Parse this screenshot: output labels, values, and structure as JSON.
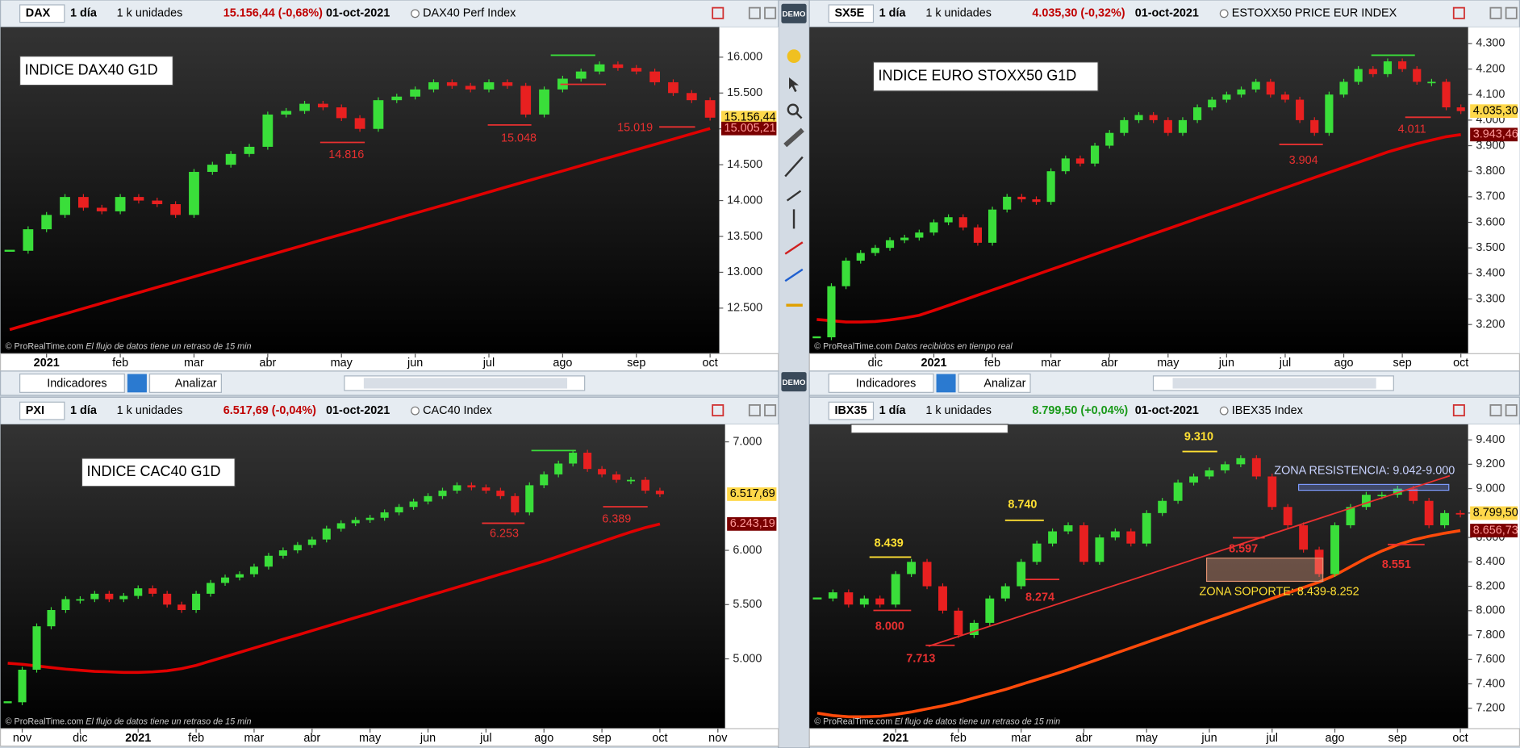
{
  "sidebar": {
    "demo": "DEMO"
  },
  "toolbar_common": {
    "indicators": "Indicadores",
    "analyze": "Analizar"
  },
  "panels": [
    {
      "toolbar": {
        "symbol": "DAX",
        "period": "1 día",
        "units": "1 k unidades",
        "price": "15.156,44 (-0,68%)",
        "price_color": "#c00000",
        "date": "01-oct-2021",
        "instrument": "DAX40 Perf Index"
      },
      "footer": {
        "source": "© ProRealTime.com",
        "note": "El flujo de datos tiene un retraso de 15 min"
      },
      "chart_data": {
        "type": "candlestick",
        "label": "INDICE DAX40 G1D",
        "annotations": [
          "14.816",
          "15.048",
          "15.019"
        ],
        "categories": [
          null,
          null,
          "2021",
          null,
          null,
          null,
          "feb",
          null,
          null,
          null,
          "mar",
          null,
          null,
          null,
          "abr",
          null,
          null,
          null,
          "may",
          null,
          null,
          null,
          "jun",
          null,
          null,
          null,
          "jul",
          null,
          null,
          null,
          "ago",
          null,
          null,
          null,
          "sep",
          null,
          null,
          null,
          "oct"
        ],
        "values": [
          13300,
          13600,
          13800,
          14050,
          13900,
          13850,
          14050,
          14000,
          13950,
          13800,
          14400,
          14500,
          14650,
          14750,
          15200,
          15250,
          15350,
          15300,
          15150,
          15000,
          15400,
          15450,
          15550,
          15650,
          15600,
          15550,
          15650,
          15600,
          15200,
          15550,
          15700,
          15800,
          15900,
          15850,
          15800,
          15650,
          15500,
          15400,
          15156.44
        ],
        "up_color": "#3ade3a",
        "down_color": "#e82020",
        "moving_average": {
          "color": "#e00000",
          "values": [
            12200,
            12274,
            12348,
            12421,
            12495,
            12569,
            12643,
            12717,
            12790,
            12864,
            12938,
            13012,
            13086,
            13159,
            13233,
            13307,
            13381,
            13455,
            13528,
            13602,
            13676,
            13750,
            13824,
            13897,
            13971,
            14045,
            14119,
            14193,
            14266,
            14340,
            14414,
            14488,
            14562,
            14635,
            14709,
            14783,
            14857,
            14931,
            15005.21
          ]
        },
        "last_label": "15.156,44",
        "ma_label": "15.005,21",
        "ylim": [
          11865,
          16419
        ],
        "yticks": [
          {
            "value": 12500,
            "label": "12.500"
          },
          {
            "value": 13000,
            "label": "13.000"
          },
          {
            "value": 13500,
            "label": "13.500"
          },
          {
            "value": 14000,
            "label": "14.000"
          },
          {
            "value": 14500,
            "label": "14.500"
          },
          {
            "value": 15000,
            "label": "15.000"
          },
          {
            "value": 15500,
            "label": "15.500"
          },
          {
            "value": 16000,
            "label": "16.000"
          }
        ]
      }
    },
    {
      "toolbar": {
        "symbol": "SX5E",
        "period": "1 día",
        "units": "1 k unidades",
        "price": "4.035,30 (-0,32%)",
        "price_color": "#c00000",
        "date": "01-oct-2021",
        "instrument": "ESTOXX50 PRICE EUR INDEX"
      },
      "footer": {
        "source": "© ProRealTime.com",
        "note": "Datos recibidos en tiempo real"
      },
      "chart_data": {
        "type": "candlestick",
        "label": "INDICE EURO STOXX50 G1D",
        "annotations": [
          "3.904",
          "4.011"
        ],
        "categories": [
          null,
          null,
          null,
          null,
          "dic",
          null,
          null,
          null,
          "2021",
          null,
          null,
          null,
          "feb",
          null,
          null,
          null,
          "mar",
          null,
          null,
          null,
          "abr",
          null,
          null,
          null,
          "may",
          null,
          null,
          null,
          "jun",
          null,
          null,
          null,
          "jul",
          null,
          null,
          null,
          "ago",
          null,
          null,
          null,
          "sep",
          null,
          null,
          null,
          "oct"
        ],
        "values": [
          3150,
          3350,
          3450,
          3480,
          3500,
          3530,
          3540,
          3560,
          3600,
          3620,
          3580,
          3520,
          3650,
          3700,
          3690,
          3680,
          3800,
          3850,
          3830,
          3900,
          3950,
          4000,
          4020,
          4000,
          3950,
          4000,
          4050,
          4080,
          4100,
          4120,
          4150,
          4100,
          4080,
          4000,
          3950,
          4100,
          4150,
          4200,
          4180,
          4230,
          4200,
          4150,
          4150,
          4050,
          4035.3
        ],
        "up_color": "#3ade3a",
        "down_color": "#e82020",
        "moving_average": {
          "color": "#e00000",
          "values": [
            3220,
            3215,
            3210,
            3210,
            3212,
            3218,
            3226,
            3236,
            3255,
            3275,
            3295,
            3315,
            3335,
            3355,
            3375,
            3395,
            3415,
            3435,
            3455,
            3475,
            3495,
            3515,
            3535,
            3555,
            3575,
            3595,
            3615,
            3635,
            3655,
            3675,
            3695,
            3715,
            3735,
            3755,
            3775,
            3795,
            3815,
            3835,
            3855,
            3875,
            3892,
            3908,
            3922,
            3935,
            3943.46
          ]
        },
        "last_label": "4.035,30",
        "ma_label": "3.943,46",
        "ylim": [
          3086,
          4364
        ],
        "yticks": [
          {
            "value": 3200,
            "label": "3.200"
          },
          {
            "value": 3300,
            "label": "3.300"
          },
          {
            "value": 3400,
            "label": "3.400"
          },
          {
            "value": 3500,
            "label": "3.500"
          },
          {
            "value": 3600,
            "label": "3.600"
          },
          {
            "value": 3700,
            "label": "3.700"
          },
          {
            "value": 3800,
            "label": "3.800"
          },
          {
            "value": 3900,
            "label": "3.900"
          },
          {
            "value": 4000,
            "label": "4.000"
          },
          {
            "value": 4100,
            "label": "4.100"
          },
          {
            "value": 4200,
            "label": "4.200"
          },
          {
            "value": 4300,
            "label": "4.300"
          }
        ]
      }
    },
    {
      "toolbar": {
        "symbol": "PXI",
        "period": "1 día",
        "units": "1 k unidades",
        "price": "6.517,69 (-0,04%)",
        "price_color": "#c00000",
        "date": "01-oct-2021",
        "instrument": "CAC40 Index"
      },
      "footer": {
        "source": "© ProRealTime.com",
        "note": "El flujo de datos tiene un retraso de 15 min"
      },
      "chart_data": {
        "type": "candlestick",
        "label": "INDICE CAC40 G1D",
        "annotations": [
          "6.253",
          "6.389"
        ],
        "categories": [
          null,
          "nov",
          null,
          null,
          null,
          "dic",
          null,
          null,
          null,
          "2021",
          null,
          null,
          null,
          "feb",
          null,
          null,
          null,
          "mar",
          null,
          null,
          null,
          "abr",
          null,
          null,
          null,
          "may",
          null,
          null,
          null,
          "jun",
          null,
          null,
          null,
          "jul",
          null,
          null,
          null,
          "ago",
          null,
          null,
          null,
          "sep",
          null,
          null,
          null,
          "oct",
          null,
          null,
          null,
          "nov"
        ],
        "values": [
          4600,
          4900,
          5300,
          5450,
          5550,
          5550,
          5600,
          5550,
          5580,
          5650,
          5600,
          5500,
          5450,
          5600,
          5700,
          5750,
          5780,
          5850,
          5950,
          6000,
          6050,
          6100,
          6200,
          6250,
          6280,
          6300,
          6350,
          6400,
          6450,
          6500,
          6550,
          6600,
          6580,
          6550,
          6500,
          6350,
          6600,
          6700,
          6800,
          6900,
          6750,
          6700,
          6650,
          6650,
          6550,
          6517.69,
          null,
          null,
          null,
          null
        ],
        "up_color": "#3ade3a",
        "down_color": "#e82020",
        "moving_average": {
          "color": "#e00000",
          "values": [
            4960,
            4950,
            4935,
            4920,
            4905,
            4895,
            4885,
            4880,
            4875,
            4875,
            4880,
            4890,
            4910,
            4940,
            4980,
            5020,
            5060,
            5100,
            5140,
            5180,
            5220,
            5260,
            5300,
            5340,
            5380,
            5420,
            5460,
            5500,
            5540,
            5580,
            5620,
            5660,
            5700,
            5740,
            5780,
            5820,
            5860,
            5900,
            5945,
            5990,
            6035,
            6080,
            6125,
            6170,
            6210,
            6243.19,
            null,
            null,
            null,
            null
          ]
        },
        "last_label": "6.517,69",
        "ma_label": "6.243,19",
        "ylim": [
          4357,
          7161
        ],
        "yticks": [
          {
            "value": 5000,
            "label": "5.000"
          },
          {
            "value": 5500,
            "label": "5.500"
          },
          {
            "value": 6000,
            "label": "6.000"
          },
          {
            "value": 7000,
            "label": "7.000"
          }
        ]
      }
    },
    {
      "toolbar": {
        "symbol": "IBX35",
        "period": "1 día",
        "units": "1 k unidades",
        "price": "8.799,50 (+0,04%)",
        "price_color": "#1a9a1a",
        "date": "01-oct-2021",
        "instrument": "IBEX35 Index"
      },
      "footer": {
        "source": "© ProRealTime.com",
        "note": "El flujo de datos tiene un retraso de 15 min"
      },
      "chart_data": {
        "type": "candlestick",
        "label": "",
        "annotations": [
          "8.439",
          "8.740",
          "9.310",
          "8.000",
          "7.713",
          "8.274",
          "8.597",
          "8.551",
          "ZONA RESISTENCIA: 9.042-9.000",
          "ZONA SOPORTE: 8.439-8.252"
        ],
        "categories": [
          null,
          null,
          null,
          null,
          null,
          "2021",
          null,
          null,
          null,
          "feb",
          null,
          null,
          null,
          "mar",
          null,
          null,
          null,
          "abr",
          null,
          null,
          null,
          "may",
          null,
          null,
          null,
          "jun",
          null,
          null,
          null,
          "jul",
          null,
          null,
          null,
          "ago",
          null,
          null,
          null,
          "sep",
          null,
          null,
          null,
          "oct"
        ],
        "values": [
          8100,
          8150,
          8050,
          8100,
          8050,
          8300,
          8400,
          8200,
          8000,
          7800,
          7900,
          8100,
          8200,
          8400,
          8550,
          8650,
          8700,
          8400,
          8600,
          8650,
          8550,
          8800,
          8900,
          9050,
          9100,
          9150,
          9200,
          9250,
          9100,
          8850,
          8700,
          8500,
          8300,
          8700,
          8850,
          8950,
          8950,
          9000,
          8900,
          8700,
          8800,
          8799.5
        ],
        "up_color": "#3ade3a",
        "down_color": "#e82020",
        "moving_average": {
          "color": "#ff4a0a",
          "values": [
            7160,
            7140,
            7130,
            7130,
            7135,
            7150,
            7170,
            7195,
            7220,
            7250,
            7285,
            7320,
            7355,
            7395,
            7435,
            7475,
            7515,
            7560,
            7605,
            7650,
            7695,
            7740,
            7785,
            7830,
            7875,
            7920,
            7965,
            8010,
            8055,
            8100,
            8145,
            8190,
            8235,
            8290,
            8360,
            8430,
            8490,
            8540,
            8580,
            8610,
            8635,
            8656.73
          ]
        },
        "last_label": "8.799,50",
        "ma_label": "8.656,73",
        "ylim": [
          7033,
          9527
        ],
        "yticks": [
          {
            "value": 7200,
            "label": "7.200"
          },
          {
            "value": 7400,
            "label": "7.400"
          },
          {
            "value": 7600,
            "label": "7.600"
          },
          {
            "value": 7800,
            "label": "7.800"
          },
          {
            "value": 8000,
            "label": "8.000"
          },
          {
            "value": 8200,
            "label": "8.200"
          },
          {
            "value": 8400,
            "label": "8.400"
          },
          {
            "value": 8600,
            "label": "8.600"
          },
          {
            "value": 8800,
            "label": "8.800"
          },
          {
            "value": 9000,
            "label": "9.000"
          },
          {
            "value": 9200,
            "label": "9.200"
          },
          {
            "value": 9400,
            "label": "9.400"
          }
        ]
      }
    }
  ]
}
